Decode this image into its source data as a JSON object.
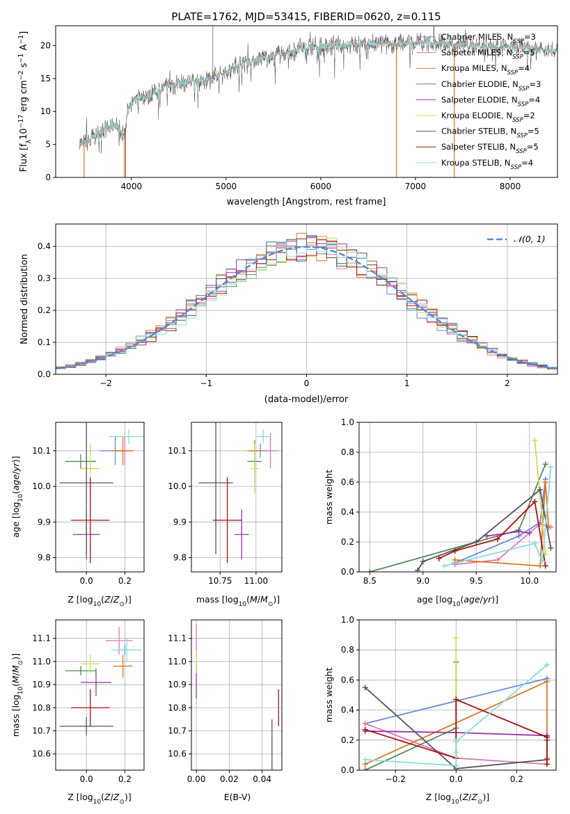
{
  "title": "PLATE=1762, MJD=53415, FIBERID=0620, z=0.115",
  "colors": {
    "chabrier_miles": "#6688dd",
    "salpeter_miles": "#dd77bb",
    "kroupa_miles": "#dd7722",
    "chabrier_elodie": "#558855",
    "salpeter_elodie": "#9933aa",
    "kroupa_elodie": "#ccdd55",
    "chabrier_stelib": "#555555",
    "salpeter_stelib": "#aa1111",
    "kroupa_stelib": "#88dddd",
    "grid": "#b0b0b0",
    "normal_curve": "#5588dd"
  },
  "chart_data": [
    {
      "type": "line",
      "xlabel": "wavelength [Angstrom, rest frame]",
      "ylabel": "Flux [fλ10⁻¹⁷ erg cm⁻² s⁻¹ A⁻¹]",
      "xlim": [
        3200,
        8500
      ],
      "ylim": [
        0,
        23
      ],
      "xticks": [
        4000,
        5000,
        6000,
        7000,
        8000
      ],
      "yticks": [
        0,
        5,
        10,
        15,
        20
      ],
      "legend_position": "top-right",
      "legend": [
        {
          "base": "Chabrier MILES, N",
          "sub": "SSP",
          "tail": "=3",
          "key": "chabrier_miles"
        },
        {
          "base": "Salpeter MILES, N",
          "sub": "SSP",
          "tail": "=5",
          "key": "salpeter_miles"
        },
        {
          "base": "Kroupa MILES, N",
          "sub": "SSP",
          "tail": "=4",
          "key": "kroupa_miles"
        },
        {
          "base": "Chabrier ELODIE, N",
          "sub": "SSP",
          "tail": "=3",
          "key": "chabrier_elodie"
        },
        {
          "base": "Salpeter ELODIE, N",
          "sub": "SSP",
          "tail": "=4",
          "key": "salpeter_elodie"
        },
        {
          "base": "Kroupa ELODIE, N",
          "sub": "SSP",
          "tail": "=2",
          "key": "kroupa_elodie"
        },
        {
          "base": "Chabrier STELIB, N",
          "sub": "SSP",
          "tail": "=5",
          "key": "chabrier_stelib"
        },
        {
          "base": "Salpeter STELIB, N",
          "sub": "SSP",
          "tail": "=5",
          "key": "salpeter_stelib"
        },
        {
          "base": "Kroupa STELIB, N",
          "sub": "SSP",
          "tail": "=4",
          "key": "kroupa_stelib"
        }
      ],
      "spectrum_envelope": [
        [
          3450,
          5
        ],
        [
          3550,
          5.5
        ],
        [
          3700,
          7.5
        ],
        [
          3850,
          8
        ],
        [
          3920,
          6
        ],
        [
          3960,
          10
        ],
        [
          4050,
          12
        ],
        [
          4200,
          12.5
        ],
        [
          4400,
          14
        ],
        [
          4600,
          14.5
        ],
        [
          4860,
          15
        ],
        [
          5000,
          16
        ],
        [
          5200,
          17.5
        ],
        [
          5500,
          18.5
        ],
        [
          5800,
          19.5
        ],
        [
          6100,
          20
        ],
        [
          6400,
          20.2
        ],
        [
          6700,
          20.2
        ],
        [
          7000,
          20.5
        ],
        [
          7300,
          20.3
        ],
        [
          7600,
          20
        ],
        [
          7900,
          19.8
        ],
        [
          8200,
          19.5
        ],
        [
          8500,
          19.3
        ]
      ],
      "dropouts": [
        [
          3500,
          "kroupa_miles"
        ],
        [
          3920,
          "kroupa_elodie"
        ],
        [
          3935,
          "salpeter_stelib"
        ],
        [
          6800,
          "kroupa_miles"
        ],
        [
          7410,
          "kroupa_miles"
        ]
      ]
    },
    {
      "type": "histogram",
      "xlabel": "(data-model)/error",
      "ylabel": "Normed distribution",
      "xlim": [
        -2.5,
        2.5
      ],
      "ylim": [
        0,
        0.47
      ],
      "xticks": [
        -2,
        -1,
        0,
        1,
        2
      ],
      "yticks": [
        0.0,
        0.1,
        0.2,
        0.3,
        0.4
      ],
      "legend_position": "top-right",
      "legend": [
        {
          "label": "𝒩(0, 1)",
          "key": "normal_curve"
        }
      ],
      "bin_width": 0.1
    },
    {
      "type": "scatter",
      "name": "age-vs-Z",
      "xlabel_base": "Z [log",
      "xlabel_sub": "10",
      "xlabel_tail": "(Z/Z",
      "xlabel_sun": "⊙",
      "xlabel_end": ")]",
      "ylabel": "age  [log10(age/yr)]",
      "xlim": [
        -0.16,
        0.3
      ],
      "ylim": [
        9.76,
        10.18
      ],
      "xticks": [
        0.0,
        0.2
      ],
      "yticks": [
        9.8,
        9.9,
        10.0,
        10.1
      ],
      "points": [
        {
          "key": "chabrier_miles",
          "x": 0.15,
          "xerr": 0.08,
          "y": 10.1,
          "yerr": 0.04
        },
        {
          "key": "salpeter_miles",
          "x": 0.2,
          "xerr": 0.05,
          "y": 10.1,
          "yerr": 0.04
        },
        {
          "key": "kroupa_miles",
          "x": 0.19,
          "xerr": 0.05,
          "y": 10.1,
          "yerr": 0.04
        },
        {
          "key": "chabrier_elodie",
          "x": -0.03,
          "xerr": 0.08,
          "y": 10.07,
          "yerr": 0.02
        },
        {
          "key": "salpeter_elodie",
          "x": 0.0,
          "xerr": 0.07,
          "y": 9.865,
          "yerr": 0.07
        },
        {
          "key": "kroupa_elodie",
          "x": 0.02,
          "xerr": 0.05,
          "y": 10.05,
          "yerr": 0.07
        },
        {
          "key": "chabrier_stelib",
          "x": 0.0,
          "xerr": 0.14,
          "y": 10.01,
          "yerr": 0.2
        },
        {
          "key": "salpeter_stelib",
          "x": 0.02,
          "xerr": 0.1,
          "y": 9.905,
          "yerr": 0.12
        },
        {
          "key": "kroupa_stelib",
          "x": 0.22,
          "xerr": 0.1,
          "y": 10.14,
          "yerr": 0.02
        }
      ]
    },
    {
      "type": "scatter",
      "name": "age-vs-mass",
      "xlabel": "mass [log10(M/M⊙)]",
      "ylabel": "",
      "xlim": [
        10.55,
        11.18
      ],
      "ylim": [
        9.76,
        10.18
      ],
      "xticks": [
        10.75,
        11.0
      ],
      "yticks": [
        9.8,
        9.9,
        10.0,
        10.1
      ],
      "points": [
        {
          "key": "chabrier_miles",
          "x": 11.03,
          "xerr": 0.06,
          "y": 10.1,
          "yerr": 0.02
        },
        {
          "key": "salpeter_miles",
          "x": 11.1,
          "xerr": 0.06,
          "y": 10.1,
          "yerr": 0.05
        },
        {
          "key": "kroupa_miles",
          "x": 10.99,
          "xerr": 0.05,
          "y": 10.1,
          "yerr": 0.03
        },
        {
          "key": "chabrier_elodie",
          "x": 10.99,
          "xerr": 0.05,
          "y": 10.07,
          "yerr": 0.03
        },
        {
          "key": "salpeter_elodie",
          "x": 10.9,
          "xerr": 0.05,
          "y": 9.865,
          "yerr": 0.07
        },
        {
          "key": "kroupa_elodie",
          "x": 10.99,
          "xerr": 0.03,
          "y": 10.05,
          "yerr": 0.07
        },
        {
          "key": "chabrier_stelib",
          "x": 10.72,
          "xerr": 0.12,
          "y": 10.01,
          "yerr": 0.2
        },
        {
          "key": "salpeter_stelib",
          "x": 10.8,
          "xerr": 0.1,
          "y": 9.905,
          "yerr": 0.12
        },
        {
          "key": "kroupa_stelib",
          "x": 11.05,
          "xerr": 0.05,
          "y": 10.14,
          "yerr": 0.02
        }
      ]
    },
    {
      "type": "line",
      "name": "mass-weight-vs-age",
      "xlabel": "age  [log10(age/yr)]",
      "ylabel": "mass weight",
      "xlim": [
        8.4,
        10.25
      ],
      "ylim": [
        0,
        1
      ],
      "xticks": [
        8.5,
        9.0,
        9.5,
        10.0
      ],
      "yticks": [
        0.0,
        0.2,
        0.4,
        0.6,
        0.8,
        1.0
      ],
      "series": [
        {
          "key": "chabrier_miles",
          "x": [
            9.3,
            9.9,
            10.1,
            10.15
          ],
          "y": [
            0.06,
            0.24,
            0.33,
            0.62
          ]
        },
        {
          "key": "salpeter_miles",
          "x": [
            9.3,
            9.7,
            10.1,
            10.2
          ],
          "y": [
            0.05,
            0.08,
            0.32,
            0.3
          ]
        },
        {
          "key": "kroupa_miles",
          "x": [
            9.3,
            10.1,
            10.15,
            10.18
          ],
          "y": [
            0.08,
            0.04,
            0.6,
            0.3
          ]
        },
        {
          "key": "chabrier_elodie",
          "x": [
            8.5,
            9.9,
            10.15
          ],
          "y": [
            0.0,
            0.28,
            0.72
          ]
        },
        {
          "key": "salpeter_elodie",
          "x": [
            9.6,
            9.9,
            10.0
          ],
          "y": [
            0.24,
            0.27,
            0.26
          ]
        },
        {
          "key": "kroupa_elodie",
          "x": [
            10.05,
            10.15
          ],
          "y": [
            0.88,
            0.12
          ]
        },
        {
          "key": "chabrier_stelib",
          "x": [
            8.95,
            9.0,
            9.5,
            10.1,
            10.2
          ],
          "y": [
            0.01,
            0.07,
            0.2,
            0.55,
            0.16
          ]
        },
        {
          "key": "salpeter_stelib",
          "x": [
            9.15,
            9.3,
            9.7,
            10.05,
            10.15
          ],
          "y": [
            0.09,
            0.14,
            0.22,
            0.47,
            0.04
          ]
        },
        {
          "key": "kroupa_stelib",
          "x": [
            9.2,
            10.05,
            10.12,
            10.2
          ],
          "y": [
            0.04,
            0.19,
            0.07,
            0.7
          ]
        }
      ]
    },
    {
      "type": "scatter",
      "name": "mass-vs-Z",
      "xlabel": "Z [log10(Z/Z⊙)]",
      "ylabel": "mass [log10(M/M⊙)]",
      "xlim": [
        -0.16,
        0.3
      ],
      "ylim": [
        10.53,
        11.18
      ],
      "xticks": [
        0.0,
        0.2
      ],
      "yticks": [
        10.6,
        10.7,
        10.8,
        10.9,
        11.0,
        11.1
      ],
      "points": [
        {
          "key": "chabrier_miles",
          "x": 0.2,
          "xerr": 0.04,
          "y": 11.05,
          "yerr": 0.02
        },
        {
          "key": "salpeter_miles",
          "x": 0.17,
          "xerr": 0.07,
          "y": 11.09,
          "yerr": 0.06
        },
        {
          "key": "kroupa_miles",
          "x": 0.19,
          "xerr": 0.05,
          "y": 10.98,
          "yerr": 0.05
        },
        {
          "key": "chabrier_elodie",
          "x": -0.03,
          "xerr": 0.08,
          "y": 10.96,
          "yerr": 0.02
        },
        {
          "key": "salpeter_elodie",
          "x": 0.05,
          "xerr": 0.08,
          "y": 10.91,
          "yerr": 0.06
        },
        {
          "key": "kroupa_elodie",
          "x": 0.02,
          "xerr": 0.05,
          "y": 10.99,
          "yerr": 0.04
        },
        {
          "key": "chabrier_stelib",
          "x": 0.0,
          "xerr": 0.14,
          "y": 10.72,
          "yerr": 0.04
        },
        {
          "key": "salpeter_stelib",
          "x": 0.02,
          "xerr": 0.1,
          "y": 10.8,
          "yerr": 0.08
        },
        {
          "key": "kroupa_stelib",
          "x": 0.21,
          "xerr": 0.08,
          "y": 11.05,
          "yerr": 0.05
        }
      ]
    },
    {
      "type": "scatter",
      "name": "mass-vs-ebv",
      "xlabel": "E(B-V)",
      "ylabel": "",
      "xlim": [
        -0.003,
        0.052
      ],
      "ylim": [
        10.53,
        11.18
      ],
      "xticks": [
        0.0,
        0.02,
        0.04
      ],
      "yticks": [
        10.6,
        10.7,
        10.8,
        10.9,
        11.0,
        11.1
      ],
      "points": [
        {
          "key": "salpeter_miles",
          "x": 0.0,
          "xerr": 0,
          "y": 11.09,
          "yerr": 0.07
        },
        {
          "key": "salpeter_elodie",
          "x": 0.0,
          "xerr": 0,
          "y": 10.92,
          "yerr": 0.08
        },
        {
          "key": "kroupa_elodie",
          "x": 0.0,
          "xerr": 0,
          "y": 11.0,
          "yerr": 0.05
        },
        {
          "key": "chabrier_stelib",
          "x": 0.046,
          "xerr": 0,
          "y": 10.6,
          "yerr": 0.15
        },
        {
          "key": "salpeter_stelib",
          "x": 0.05,
          "xerr": 0,
          "y": 10.8,
          "yerr": 0.08
        }
      ]
    },
    {
      "type": "line",
      "name": "mass-weight-vs-Z",
      "xlabel": "Z [log10(Z/Z⊙)]",
      "ylabel": "mass weight",
      "xlim": [
        -0.32,
        0.33
      ],
      "ylim": [
        0,
        1
      ],
      "xticks": [
        -0.2,
        0.0,
        0.2
      ],
      "yticks": [
        0.0,
        0.2,
        0.4,
        0.6,
        0.8,
        1.0
      ],
      "series": [
        {
          "key": "chabrier_miles",
          "x": [
            -0.3,
            0.3
          ],
          "y": [
            0.31,
            0.61
          ]
        },
        {
          "key": "salpeter_miles",
          "x": [
            -0.3,
            0.0,
            0.3
          ],
          "y": [
            0.31,
            0.08,
            0.04
          ]
        },
        {
          "key": "kroupa_miles",
          "x": [
            -0.3,
            0.3,
            0.3
          ],
          "y": [
            0.04,
            0.59,
            0.08
          ]
        },
        {
          "key": "chabrier_elodie",
          "x": [
            -0.3,
            0.0,
            0.0
          ],
          "y": [
            0.0,
            0.28,
            0.72
          ]
        },
        {
          "key": "salpeter_elodie",
          "x": [
            -0.3,
            0.0,
            0.3
          ],
          "y": [
            0.26,
            0.25,
            0.23
          ]
        },
        {
          "key": "kroupa_elodie",
          "x": [
            0.0,
            0.0
          ],
          "y": [
            0.88,
            0.12
          ]
        },
        {
          "key": "chabrier_stelib",
          "x": [
            -0.3,
            0.0,
            0.3,
            0.3
          ],
          "y": [
            0.55,
            0.01,
            0.07,
            0.2
          ]
        },
        {
          "key": "salpeter_stelib",
          "x": [
            -0.3,
            0.0,
            0.0,
            0.3,
            0.3
          ],
          "y": [
            0.27,
            0.08,
            0.47,
            0.22,
            0.04
          ]
        },
        {
          "key": "kroupa_stelib",
          "x": [
            -0.3,
            0.0,
            0.0,
            0.3
          ],
          "y": [
            0.07,
            0.03,
            0.19,
            0.7
          ]
        }
      ]
    }
  ]
}
